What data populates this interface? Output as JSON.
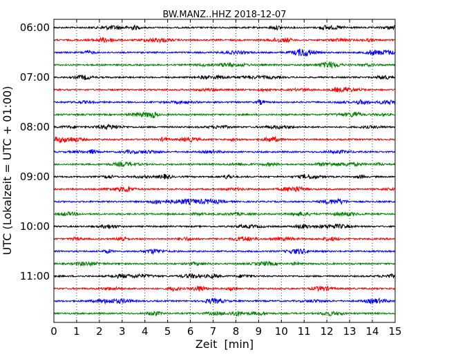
{
  "chart_data": {
    "type": "line",
    "title": "BW.MANZ..HHZ 2018-12-07",
    "xlabel": "Zeit  [min]",
    "ylabel": "UTC (Lokalzeit = UTC + 01:00)",
    "xlim": [
      0,
      15
    ],
    "x_ticks": [
      "0",
      "1",
      "2",
      "3",
      "4",
      "5",
      "6",
      "7",
      "8",
      "9",
      "10",
      "11",
      "12",
      "13",
      "14",
      "15"
    ],
    "y_tick_labels": [
      "06:00",
      "07:00",
      "08:00",
      "09:00",
      "10:00",
      "11:00"
    ],
    "grid": "vertical dotted",
    "trace_colors": [
      "#000000",
      "#ff0000",
      "#0000ff",
      "#008000"
    ],
    "trace_start_times": [
      "06:00",
      "06:15",
      "06:30",
      "06:45",
      "07:00",
      "07:15",
      "07:30",
      "07:45",
      "08:00",
      "08:15",
      "08:30",
      "08:45",
      "09:00",
      "09:15",
      "09:30",
      "09:45",
      "10:00",
      "10:15",
      "10:30",
      "10:45",
      "11:00",
      "11:15",
      "11:30",
      "11:45"
    ],
    "minutes_per_trace": 15
  }
}
